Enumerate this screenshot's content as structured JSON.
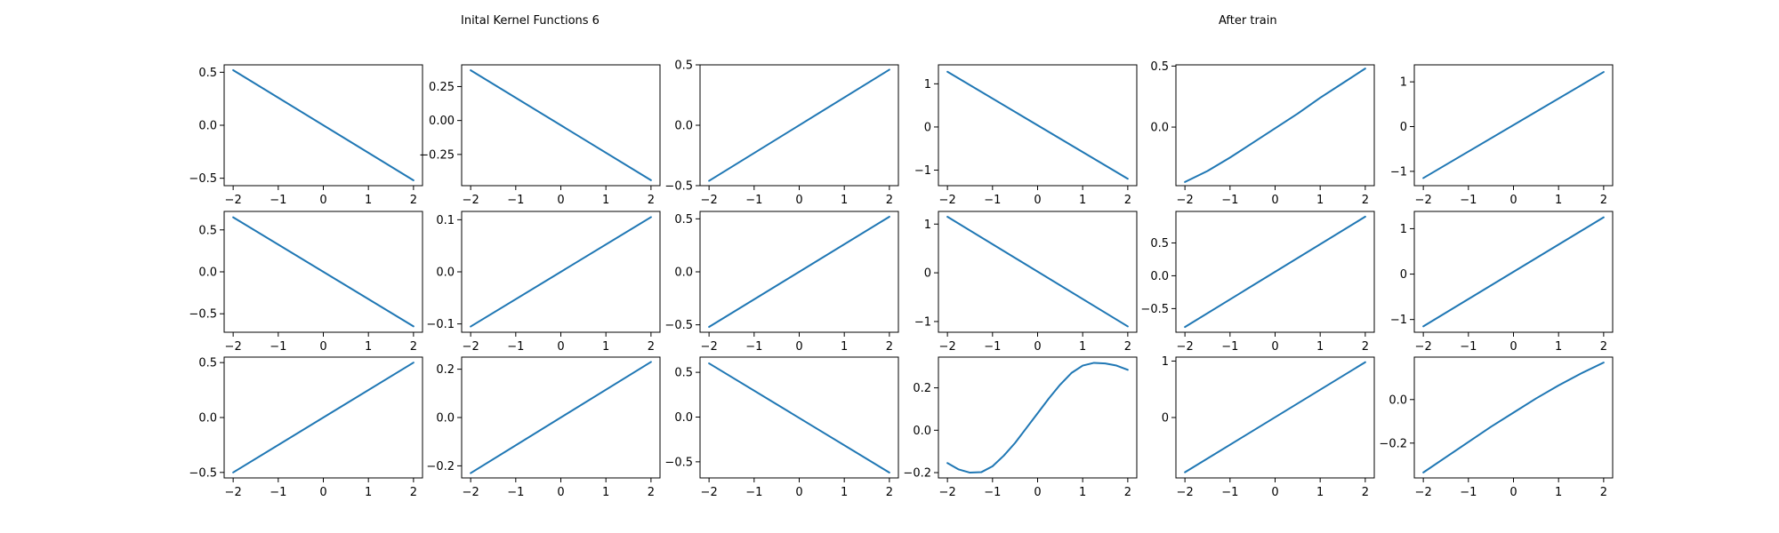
{
  "titles": {
    "left": "Inital Kernel Functions 6",
    "right": "After train"
  },
  "colors": {
    "line": "#1f77b4",
    "axes": "#000000",
    "background": "#ffffff"
  },
  "chart_data": [
    {
      "type": "line",
      "group": "initial",
      "x": [
        -2,
        2
      ],
      "y": [
        0.52,
        -0.52
      ],
      "xlim": [
        -2.2,
        2.2
      ],
      "ylim": [
        -0.57,
        0.57
      ],
      "xticks": [
        -2,
        -1,
        0,
        1,
        2
      ],
      "xtick_labels": [
        "−2",
        "−1",
        "0",
        "1",
        "2"
      ],
      "yticks": [
        -0.5,
        0,
        0.5
      ],
      "ytick_labels": [
        "−0.5",
        "0.0",
        "0.5"
      ]
    },
    {
      "type": "line",
      "group": "initial",
      "x": [
        -2,
        2
      ],
      "y": [
        0.37,
        -0.44
      ],
      "xlim": [
        -2.2,
        2.2
      ],
      "ylim": [
        -0.48,
        0.41
      ],
      "xticks": [
        -2,
        -1,
        0,
        1,
        2
      ],
      "xtick_labels": [
        "−2",
        "−1",
        "0",
        "1",
        "2"
      ],
      "yticks": [
        -0.25,
        0,
        0.25
      ],
      "ytick_labels": [
        "−0.25",
        "0.00",
        "0.25"
      ]
    },
    {
      "type": "line",
      "group": "initial",
      "x": [
        -2,
        2
      ],
      "y": [
        -0.46,
        0.46
      ],
      "xlim": [
        -2.2,
        2.2
      ],
      "ylim": [
        -0.5,
        0.5
      ],
      "xticks": [
        -2,
        -1,
        0,
        1,
        2
      ],
      "xtick_labels": [
        "−2",
        "−1",
        "0",
        "1",
        "2"
      ],
      "yticks": [
        -0.5,
        0,
        0.5
      ],
      "ytick_labels": [
        "−0.5",
        "0.0",
        "0.5"
      ]
    },
    {
      "type": "line",
      "group": "after_train",
      "x": [
        -2,
        2
      ],
      "y": [
        1.28,
        -1.2
      ],
      "xlim": [
        -2.2,
        2.2
      ],
      "ylim": [
        -1.36,
        1.44
      ],
      "xticks": [
        -2,
        -1,
        0,
        1,
        2
      ],
      "xtick_labels": [
        "−2",
        "−1",
        "0",
        "1",
        "2"
      ],
      "yticks": [
        -1,
        0,
        1
      ],
      "ytick_labels": [
        "−1",
        "0",
        "1"
      ]
    },
    {
      "type": "line",
      "group": "after_train",
      "x": [
        -2,
        -1.5,
        -1,
        -0.5,
        0,
        0.5,
        1,
        1.5,
        2
      ],
      "y": [
        -0.45,
        -0.36,
        -0.25,
        -0.13,
        -0.01,
        0.11,
        0.24,
        0.36,
        0.48
      ],
      "xlim": [
        -2.2,
        2.2
      ],
      "ylim": [
        -0.48,
        0.51
      ],
      "xticks": [
        -2,
        -1,
        0,
        1,
        2
      ],
      "xtick_labels": [
        "−2",
        "−1",
        "0",
        "1",
        "2"
      ],
      "yticks": [
        0,
        0.5
      ],
      "ytick_labels": [
        "0.0",
        "0.5"
      ]
    },
    {
      "type": "line",
      "group": "after_train",
      "x": [
        -2,
        2
      ],
      "y": [
        -1.15,
        1.22
      ],
      "xlim": [
        -2.2,
        2.2
      ],
      "ylim": [
        -1.32,
        1.38
      ],
      "xticks": [
        -2,
        -1,
        0,
        1,
        2
      ],
      "xtick_labels": [
        "−2",
        "−1",
        "0",
        "1",
        "2"
      ],
      "yticks": [
        -1,
        0,
        1
      ],
      "ytick_labels": [
        "−1",
        "0",
        "1"
      ]
    },
    {
      "type": "line",
      "group": "initial",
      "x": [
        -2,
        2
      ],
      "y": [
        0.65,
        -0.65
      ],
      "xlim": [
        -2.2,
        2.2
      ],
      "ylim": [
        -0.72,
        0.72
      ],
      "xticks": [
        -2,
        -1,
        0,
        1,
        2
      ],
      "xtick_labels": [
        "−2",
        "−1",
        "0",
        "1",
        "2"
      ],
      "yticks": [
        -0.5,
        0,
        0.5
      ],
      "ytick_labels": [
        "−0.5",
        "0.0",
        "0.5"
      ]
    },
    {
      "type": "line",
      "group": "initial",
      "x": [
        -2,
        2
      ],
      "y": [
        -0.105,
        0.105
      ],
      "xlim": [
        -2.2,
        2.2
      ],
      "ylim": [
        -0.116,
        0.116
      ],
      "xticks": [
        -2,
        -1,
        0,
        1,
        2
      ],
      "xtick_labels": [
        "−2",
        "−1",
        "0",
        "1",
        "2"
      ],
      "yticks": [
        -0.1,
        0,
        0.1
      ],
      "ytick_labels": [
        "−0.1",
        "0.0",
        "0.1"
      ]
    },
    {
      "type": "line",
      "group": "initial",
      "x": [
        -2,
        2
      ],
      "y": [
        -0.52,
        0.52
      ],
      "xlim": [
        -2.2,
        2.2
      ],
      "ylim": [
        -0.57,
        0.57
      ],
      "xticks": [
        -2,
        -1,
        0,
        1,
        2
      ],
      "xtick_labels": [
        "−2",
        "−1",
        "0",
        "1",
        "2"
      ],
      "yticks": [
        -0.5,
        0,
        0.5
      ],
      "ytick_labels": [
        "−0.5",
        "0.0",
        "0.5"
      ]
    },
    {
      "type": "line",
      "group": "after_train",
      "x": [
        -2,
        2
      ],
      "y": [
        1.15,
        -1.1
      ],
      "xlim": [
        -2.2,
        2.2
      ],
      "ylim": [
        -1.22,
        1.26
      ],
      "xticks": [
        -2,
        -1,
        0,
        1,
        2
      ],
      "xtick_labels": [
        "−2",
        "−1",
        "0",
        "1",
        "2"
      ],
      "yticks": [
        -1,
        0,
        1
      ],
      "ytick_labels": [
        "−1",
        "0",
        "1"
      ]
    },
    {
      "type": "line",
      "group": "after_train",
      "x": [
        -2,
        2
      ],
      "y": [
        -0.78,
        0.9
      ],
      "xlim": [
        -2.2,
        2.2
      ],
      "ylim": [
        -0.86,
        0.98
      ],
      "xticks": [
        -2,
        -1,
        0,
        1,
        2
      ],
      "xtick_labels": [
        "−2",
        "−1",
        "0",
        "1",
        "2"
      ],
      "yticks": [
        -0.5,
        0,
        0.5
      ],
      "ytick_labels": [
        "−0.5",
        "0.0",
        "0.5"
      ]
    },
    {
      "type": "line",
      "group": "after_train",
      "x": [
        -2,
        2
      ],
      "y": [
        -1.15,
        1.25
      ],
      "xlim": [
        -2.2,
        2.2
      ],
      "ylim": [
        -1.28,
        1.38
      ],
      "xticks": [
        -2,
        -1,
        0,
        1,
        2
      ],
      "xtick_labels": [
        "−2",
        "−1",
        "0",
        "1",
        "2"
      ],
      "yticks": [
        -1,
        0,
        1
      ],
      "ytick_labels": [
        "−1",
        "0",
        "1"
      ]
    },
    {
      "type": "line",
      "group": "initial",
      "x": [
        -2,
        2
      ],
      "y": [
        -0.5,
        0.5
      ],
      "xlim": [
        -2.2,
        2.2
      ],
      "ylim": [
        -0.55,
        0.55
      ],
      "xticks": [
        -2,
        -1,
        0,
        1,
        2
      ],
      "xtick_labels": [
        "−2",
        "−1",
        "0",
        "1",
        "2"
      ],
      "yticks": [
        -0.5,
        0,
        0.5
      ],
      "ytick_labels": [
        "−0.5",
        "0.0",
        "0.5"
      ]
    },
    {
      "type": "line",
      "group": "initial",
      "x": [
        -2,
        2
      ],
      "y": [
        -0.23,
        0.23
      ],
      "xlim": [
        -2.2,
        2.2
      ],
      "ylim": [
        -0.25,
        0.25
      ],
      "xticks": [
        -2,
        -1,
        0,
        1,
        2
      ],
      "xtick_labels": [
        "−2",
        "−1",
        "0",
        "1",
        "2"
      ],
      "yticks": [
        -0.2,
        0,
        0.2
      ],
      "ytick_labels": [
        "−0.2",
        "0.0",
        "0.2"
      ]
    },
    {
      "type": "line",
      "group": "initial",
      "x": [
        -2,
        2
      ],
      "y": [
        0.6,
        -0.62
      ],
      "xlim": [
        -2.2,
        2.2
      ],
      "ylim": [
        -0.68,
        0.67
      ],
      "xticks": [
        -2,
        -1,
        0,
        1,
        2
      ],
      "xtick_labels": [
        "−2",
        "−1",
        "0",
        "1",
        "2"
      ],
      "yticks": [
        -0.5,
        0,
        0.5
      ],
      "ytick_labels": [
        "−0.5",
        "0.0",
        "0.5"
      ]
    },
    {
      "type": "line",
      "group": "after_train",
      "x": [
        -2,
        -1.75,
        -1.5,
        -1.25,
        -1,
        -0.75,
        -0.5,
        -0.25,
        0,
        0.25,
        0.5,
        0.75,
        1,
        1.25,
        1.5,
        1.75,
        2
      ],
      "y": [
        -0.155,
        -0.185,
        -0.2,
        -0.198,
        -0.17,
        -0.12,
        -0.06,
        0.01,
        0.08,
        0.15,
        0.215,
        0.27,
        0.305,
        0.318,
        0.315,
        0.305,
        0.285
      ],
      "xlim": [
        -2.2,
        2.2
      ],
      "ylim": [
        -0.225,
        0.345
      ],
      "xticks": [
        -2,
        -1,
        0,
        1,
        2
      ],
      "xtick_labels": [
        "−2",
        "−1",
        "0",
        "1",
        "2"
      ],
      "yticks": [
        -0.2,
        0,
        0.2
      ],
      "ytick_labels": [
        "−0.2",
        "0.0",
        "0.2"
      ]
    },
    {
      "type": "line",
      "group": "after_train",
      "x": [
        -2,
        2
      ],
      "y": [
        -0.97,
        0.98
      ],
      "xlim": [
        -2.2,
        2.2
      ],
      "ylim": [
        -1.07,
        1.07
      ],
      "xticks": [
        -2,
        -1,
        0,
        1,
        2
      ],
      "xtick_labels": [
        "−2",
        "−1",
        "0",
        "1",
        "2"
      ],
      "yticks": [
        0,
        1
      ],
      "ytick_labels": [
        "0",
        "1"
      ]
    },
    {
      "type": "line",
      "group": "after_train",
      "x": [
        -2,
        -1.5,
        -1,
        -0.5,
        0,
        0.5,
        1,
        1.5,
        2
      ],
      "y": [
        -0.335,
        -0.265,
        -0.195,
        -0.125,
        -0.06,
        0.005,
        0.065,
        0.12,
        0.17
      ],
      "xlim": [
        -2.2,
        2.2
      ],
      "ylim": [
        -0.36,
        0.195
      ],
      "xticks": [
        -2,
        -1,
        0,
        1,
        2
      ],
      "xtick_labels": [
        "−2",
        "−1",
        "0",
        "1",
        "2"
      ],
      "yticks": [
        -0.2,
        0
      ],
      "ytick_labels": [
        "−0.2",
        "0.0"
      ]
    }
  ]
}
